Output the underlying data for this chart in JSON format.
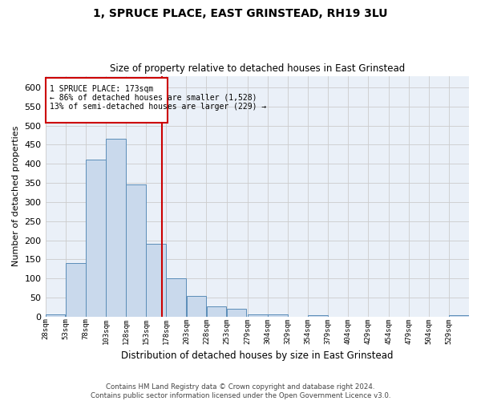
{
  "title": "1, SPRUCE PLACE, EAST GRINSTEAD, RH19 3LU",
  "subtitle": "Size of property relative to detached houses in East Grinstead",
  "xlabel": "Distribution of detached houses by size in East Grinstead",
  "ylabel": "Number of detached properties",
  "footer_line1": "Contains HM Land Registry data © Crown copyright and database right 2024.",
  "footer_line2": "Contains public sector information licensed under the Open Government Licence v3.0.",
  "annotation_line1": "1 SPRUCE PLACE: 173sqm",
  "annotation_line2": "← 86% of detached houses are smaller (1,528)",
  "annotation_line3": "13% of semi-detached houses are larger (229) →",
  "bar_color": "#c9d9ec",
  "bar_edge_color": "#5b8db8",
  "grid_color": "#cccccc",
  "background_color": "#eaf0f8",
  "red_line_color": "#cc0000",
  "annotation_box_color": "#cc0000",
  "ylim": [
    0,
    630
  ],
  "yticks": [
    0,
    50,
    100,
    150,
    200,
    250,
    300,
    350,
    400,
    450,
    500,
    550,
    600
  ],
  "bin_edges": [
    28,
    53,
    78,
    103,
    128,
    153,
    178,
    203,
    228,
    253,
    279,
    304,
    329,
    354,
    379,
    404,
    429,
    454,
    479,
    504,
    529,
    554
  ],
  "bar_heights": [
    7,
    140,
    410,
    465,
    345,
    190,
    100,
    55,
    27,
    20,
    6,
    6,
    0,
    5,
    0,
    0,
    0,
    0,
    0,
    0,
    5
  ],
  "property_size": 173,
  "figsize": [
    6.0,
    5.0
  ],
  "dpi": 100
}
